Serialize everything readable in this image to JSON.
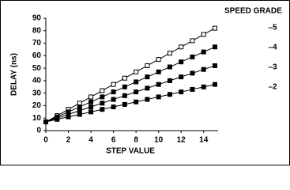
{
  "chart_data": {
    "type": "line",
    "xlabel": "STEP VALUE",
    "ylabel": "DELAY (ns)",
    "legend_title": "SPEED GRADE",
    "x": [
      0,
      1,
      2,
      3,
      4,
      5,
      6,
      7,
      8,
      9,
      10,
      11,
      12,
      13,
      14,
      15
    ],
    "series": [
      {
        "name": "–5",
        "color": "#000000",
        "marker": "open",
        "values": [
          7,
          12,
          17,
          22,
          27,
          32,
          37,
          42,
          47,
          52,
          57,
          62,
          67,
          72,
          77,
          82
        ]
      },
      {
        "name": "–4",
        "color": "#000000",
        "marker": "filled",
        "values": [
          7,
          11,
          15,
          19,
          23,
          27,
          31,
          35,
          39,
          43,
          47,
          51,
          55,
          59,
          63,
          67
        ]
      },
      {
        "name": "–3",
        "color": "#000000",
        "marker": "filled",
        "values": [
          7,
          10,
          13,
          16,
          19,
          22,
          25,
          28,
          31,
          34,
          37,
          40,
          43,
          46,
          49,
          52
        ]
      },
      {
        "name": "–2",
        "color": "#000000",
        "marker": "filled",
        "values": [
          7,
          9,
          11,
          13,
          15,
          17,
          19,
          21,
          23,
          25,
          27,
          29,
          31,
          33,
          35,
          37
        ]
      }
    ],
    "xlim": [
      0,
      15
    ],
    "xticks": [
      0,
      2,
      4,
      6,
      8,
      10,
      12,
      14
    ],
    "ylim": [
      0,
      90
    ],
    "yticks": [
      0,
      10,
      20,
      30,
      40,
      50,
      60,
      70,
      80,
      90
    ],
    "grid": false
  }
}
